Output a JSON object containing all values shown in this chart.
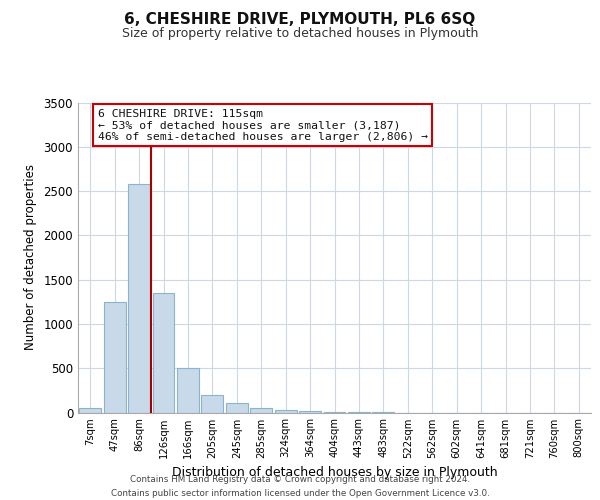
{
  "title": "6, CHESHIRE DRIVE, PLYMOUTH, PL6 6SQ",
  "subtitle": "Size of property relative to detached houses in Plymouth",
  "xlabel": "Distribution of detached houses by size in Plymouth",
  "ylabel": "Number of detached properties",
  "bar_labels": [
    "7sqm",
    "47sqm",
    "86sqm",
    "126sqm",
    "166sqm",
    "205sqm",
    "245sqm",
    "285sqm",
    "324sqm",
    "364sqm",
    "404sqm",
    "443sqm",
    "483sqm",
    "522sqm",
    "562sqm",
    "602sqm",
    "641sqm",
    "681sqm",
    "721sqm",
    "760sqm",
    "800sqm"
  ],
  "bar_values": [
    50,
    1250,
    2580,
    1350,
    500,
    200,
    110,
    50,
    30,
    20,
    10,
    5,
    3,
    0,
    0,
    0,
    0,
    0,
    0,
    0,
    0
  ],
  "bar_color": "#c8daea",
  "bar_edge_color": "#8ab4cc",
  "property_line_color": "#aa0000",
  "annotation_line1": "6 CHESHIRE DRIVE: 115sqm",
  "annotation_line2": "← 53% of detached houses are smaller (3,187)",
  "annotation_line3": "46% of semi-detached houses are larger (2,806) →",
  "annotation_box_color": "#ffffff",
  "annotation_box_edge_color": "#cc0000",
  "ylim": [
    0,
    3500
  ],
  "yticks": [
    0,
    500,
    1000,
    1500,
    2000,
    2500,
    3000,
    3500
  ],
  "footer_line1": "Contains HM Land Registry data © Crown copyright and database right 2024.",
  "footer_line2": "Contains public sector information licensed under the Open Government Licence v3.0.",
  "bg_color": "#ffffff",
  "grid_color": "#ccd8e4"
}
